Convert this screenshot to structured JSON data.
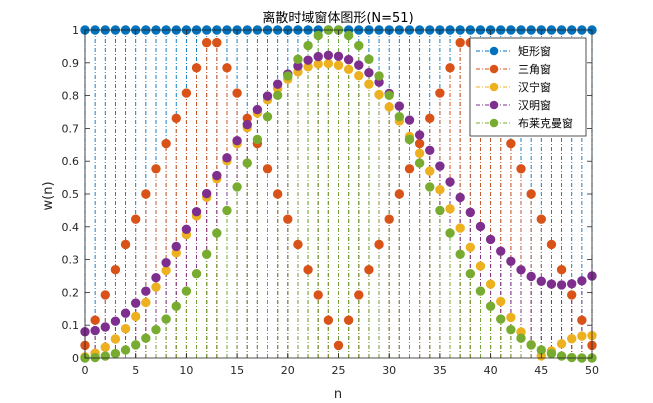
{
  "chart_data": {
    "type": "stem",
    "title": "离散时域窗体图形(N=51)",
    "xlabel": "n",
    "ylabel": "w(n)",
    "xlim": [
      0,
      50
    ],
    "ylim": [
      0,
      1
    ],
    "xticks": [
      "0",
      "5",
      "10",
      "15",
      "20",
      "25",
      "30",
      "35",
      "40",
      "45",
      "50"
    ],
    "yticks": [
      "0",
      "0.1",
      "0.2",
      "0.3",
      "0.4",
      "0.5",
      "0.6",
      "0.7",
      "0.8",
      "0.9",
      "1"
    ],
    "grid": false,
    "box": true,
    "legend_position": "top-right",
    "window_length": 51,
    "series": [
      {
        "name": "矩形窗",
        "color": "#0072BD",
        "values": [
          1,
          1,
          1,
          1,
          1,
          1,
          1,
          1,
          1,
          1,
          1,
          1,
          1,
          1,
          1,
          1,
          1,
          1,
          1,
          1,
          1,
          1,
          1,
          1,
          1,
          1,
          1,
          1,
          1,
          1,
          1,
          1,
          1,
          1,
          1,
          1,
          1,
          1,
          1,
          1,
          1,
          1,
          1,
          1,
          1,
          1,
          1,
          1,
          1,
          1,
          1
        ]
      },
      {
        "name": "三角窗",
        "color": "#D95319",
        "values": [
          0.0385,
          0.1154,
          0.1923,
          0.2692,
          0.3462,
          0.4231,
          0.5,
          0.5769,
          0.6538,
          0.7308,
          0.8077,
          0.8846,
          0.9615,
          0.9615,
          0.8846,
          0.8077,
          0.7308,
          0.6538,
          0.5769,
          0.5,
          0.4231,
          0.3462,
          0.2692,
          0.1923,
          0.1154,
          0.0385,
          0.1154,
          0.1923,
          0.2692,
          0.3462,
          0.4231,
          0.5,
          0.5769,
          0.6538,
          0.7308,
          0.8077,
          0.8846,
          0.9615,
          0.9615,
          0.8846,
          0.8077,
          0.7308,
          0.6538,
          0.5769,
          0.5,
          0.4231,
          0.3462,
          0.2692,
          0.1923,
          0.1154,
          0.0385
        ]
      },
      {
        "name": "汉宁窗",
        "color": "#EDB120",
        "values": [
          0.0037,
          0.0146,
          0.0328,
          0.0579,
          0.0894,
          0.1267,
          0.1693,
          0.2163,
          0.267,
          0.3206,
          0.3763,
          0.4331,
          0.4901,
          0.5464,
          0.6011,
          0.6533,
          0.7022,
          0.747,
          0.787,
          0.8216,
          0.8502,
          0.8724,
          0.8879,
          0.8965,
          0.898,
          0.8925,
          0.8801,
          0.8608,
          0.835,
          0.8031,
          0.7654,
          0.7226,
          0.6753,
          0.6241,
          0.5698,
          0.5131,
          0.4549,
          0.3961,
          0.3376,
          0.2803,
          0.2249,
          0.1725,
          0.1237,
          0.0793,
          0.04,
          0.0065,
          0.0215,
          0.0434,
          0.0587,
          0.067,
          0.0685
        ]
      },
      {
        "name": "汉明窗",
        "color": "#7E2F8E",
        "values": [
          0.08,
          0.0836,
          0.0945,
          0.1123,
          0.1367,
          0.1673,
          0.2036,
          0.245,
          0.2907,
          0.34,
          0.3922,
          0.4462,
          0.5012,
          0.5562,
          0.6102,
          0.6624,
          0.7117,
          0.7573,
          0.7986,
          0.8349,
          0.8655,
          0.89,
          0.9079,
          0.9189,
          0.9229,
          0.9198,
          0.9097,
          0.8929,
          0.8698,
          0.8408,
          0.8066,
          0.7679,
          0.7255,
          0.6802,
          0.6331,
          0.585,
          0.5368,
          0.4895,
          0.444,
          0.401,
          0.3614,
          0.3258,
          0.2948,
          0.269,
          0.2486,
          0.234,
          0.2254,
          0.2228,
          0.2262,
          0.2354,
          0.25
        ]
      },
      {
        "name": "布莱克曼窗",
        "color": "#77AC30",
        "values": [
          0,
          0.0014,
          0.0058,
          0.0134,
          0.0245,
          0.04,
          0.0604,
          0.0864,
          0.1187,
          0.1578,
          0.204,
          0.257,
          0.3163,
          0.381,
          0.45,
          0.5216,
          0.5943,
          0.6663,
          0.7358,
          0.8009,
          0.8598,
          0.9108,
          0.9524,
          0.9834,
          1.0,
          1.0,
          0.9834,
          0.9524,
          0.9108,
          0.8598,
          0.8009,
          0.7358,
          0.6663,
          0.5943,
          0.5216,
          0.45,
          0.381,
          0.3163,
          0.257,
          0.204,
          0.1578,
          0.1187,
          0.0864,
          0.0604,
          0.04,
          0.0245,
          0.0134,
          0.0058,
          0.0014,
          0,
          0
        ]
      }
    ]
  }
}
